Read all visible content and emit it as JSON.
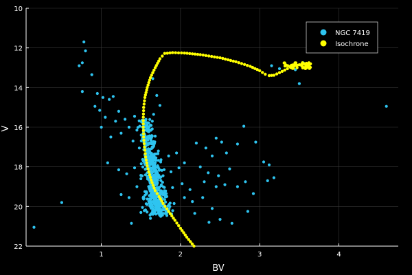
{
  "chart_data": {
    "type": "scatter",
    "xlabel": "BV",
    "ylabel": "V",
    "xlim": [
      0.05,
      4.75
    ],
    "ylim": [
      10,
      22
    ],
    "y_inverted": true,
    "x_ticks": [
      1,
      2,
      3,
      4
    ],
    "y_ticks": [
      10,
      12,
      14,
      16,
      18,
      20,
      22
    ],
    "grid": true,
    "legend_position": "top-right",
    "background": "#000000",
    "series": [
      {
        "name": "NGC 7419",
        "color": "#2ec4f0",
        "points": [
          [
            0.78,
            11.7
          ],
          [
            0.8,
            12.15
          ],
          [
            0.72,
            12.9
          ],
          [
            0.76,
            12.75
          ],
          [
            0.88,
            13.35
          ],
          [
            0.76,
            14.2
          ],
          [
            0.95,
            14.3
          ],
          [
            1.02,
            14.5
          ],
          [
            1.1,
            14.6
          ],
          [
            1.15,
            14.45
          ],
          [
            0.92,
            14.95
          ],
          [
            0.98,
            15.15
          ],
          [
            1.05,
            15.5
          ],
          [
            1.18,
            15.7
          ],
          [
            1.22,
            15.2
          ],
          [
            1.3,
            15.6
          ],
          [
            1.42,
            15.45
          ],
          [
            1.0,
            16.0
          ],
          [
            1.12,
            16.5
          ],
          [
            1.25,
            16.3
          ],
          [
            1.35,
            16.0
          ],
          [
            1.45,
            16.15
          ],
          [
            1.4,
            16.7
          ],
          [
            1.48,
            17.05
          ],
          [
            1.52,
            16.55
          ],
          [
            1.6,
            16.85
          ],
          [
            1.68,
            16.45
          ],
          [
            1.72,
            17.2
          ],
          [
            1.65,
            17.55
          ],
          [
            1.55,
            17.4
          ],
          [
            1.08,
            17.8
          ],
          [
            1.22,
            18.15
          ],
          [
            1.32,
            18.35
          ],
          [
            1.42,
            18.05
          ],
          [
            1.5,
            18.6
          ],
          [
            1.58,
            18.3
          ],
          [
            1.66,
            18.0
          ],
          [
            1.75,
            17.75
          ],
          [
            1.85,
            17.45
          ],
          [
            1.95,
            17.3
          ],
          [
            1.78,
            18.45
          ],
          [
            1.88,
            18.25
          ],
          [
            1.98,
            18.05
          ],
          [
            2.05,
            17.8
          ],
          [
            1.45,
            19.0
          ],
          [
            1.55,
            19.25
          ],
          [
            1.63,
            19.5
          ],
          [
            1.72,
            19.15
          ],
          [
            1.82,
            19.35
          ],
          [
            1.9,
            19.05
          ],
          [
            2.02,
            18.85
          ],
          [
            2.12,
            19.15
          ],
          [
            1.6,
            19.75
          ],
          [
            1.7,
            19.95
          ],
          [
            1.8,
            19.65
          ],
          [
            1.92,
            19.85
          ],
          [
            2.05,
            19.55
          ],
          [
            2.15,
            19.75
          ],
          [
            1.52,
            20.05
          ],
          [
            1.65,
            20.25
          ],
          [
            1.35,
            19.55
          ],
          [
            1.25,
            19.4
          ],
          [
            1.5,
            20.3
          ],
          [
            1.78,
            20.35
          ],
          [
            1.38,
            20.85
          ],
          [
            1.62,
            20.6
          ],
          [
            0.5,
            19.8
          ],
          [
            0.15,
            21.05
          ],
          [
            2.2,
            16.8
          ],
          [
            2.32,
            17.05
          ],
          [
            2.45,
            16.55
          ],
          [
            2.52,
            16.75
          ],
          [
            2.4,
            17.45
          ],
          [
            2.58,
            17.3
          ],
          [
            2.25,
            18.0
          ],
          [
            2.35,
            18.3
          ],
          [
            2.48,
            18.45
          ],
          [
            2.62,
            18.1
          ],
          [
            2.3,
            18.75
          ],
          [
            2.45,
            19.0
          ],
          [
            2.56,
            18.9
          ],
          [
            2.72,
            19.0
          ],
          [
            2.82,
            18.75
          ],
          [
            2.92,
            19.35
          ],
          [
            3.1,
            18.7
          ],
          [
            3.18,
            18.55
          ],
          [
            3.05,
            17.75
          ],
          [
            3.12,
            17.9
          ],
          [
            2.8,
            15.95
          ],
          [
            2.95,
            16.75
          ],
          [
            2.72,
            16.85
          ],
          [
            2.28,
            19.55
          ],
          [
            2.4,
            20.1
          ],
          [
            2.18,
            20.35
          ],
          [
            2.5,
            20.65
          ],
          [
            2.65,
            20.85
          ],
          [
            2.36,
            20.8
          ],
          [
            2.85,
            20.25
          ],
          [
            3.5,
            13.8
          ],
          [
            3.15,
            12.9
          ],
          [
            3.25,
            13.05
          ],
          [
            3.4,
            12.95
          ],
          [
            3.45,
            13.1
          ],
          [
            3.55,
            12.75
          ],
          [
            4.6,
            14.95
          ],
          [
            1.7,
            14.4
          ],
          [
            1.65,
            13.55
          ],
          [
            1.74,
            14.9
          ],
          [
            1.58,
            15.9
          ],
          [
            1.66,
            15.35
          ]
        ]
      },
      {
        "name": "Isochrone",
        "color": "#ffff00",
        "curve": [
          [
            2.17,
            22.0
          ],
          [
            2.08,
            21.55
          ],
          [
            2.0,
            21.1
          ],
          [
            1.93,
            20.7
          ],
          [
            1.85,
            20.25
          ],
          [
            1.78,
            19.85
          ],
          [
            1.73,
            19.5
          ],
          [
            1.68,
            19.2
          ],
          [
            1.64,
            18.8
          ],
          [
            1.61,
            18.4
          ],
          [
            1.58,
            17.95
          ],
          [
            1.56,
            17.5
          ],
          [
            1.545,
            17.0
          ],
          [
            1.535,
            16.5
          ],
          [
            1.53,
            16.0
          ],
          [
            1.53,
            15.5
          ],
          [
            1.535,
            15.0
          ],
          [
            1.55,
            14.5
          ],
          [
            1.58,
            14.0
          ],
          [
            1.62,
            13.5
          ],
          [
            1.68,
            13.0
          ],
          [
            1.74,
            12.55
          ],
          [
            1.8,
            12.28
          ],
          [
            1.9,
            12.24
          ],
          [
            2.05,
            12.26
          ],
          [
            2.25,
            12.34
          ],
          [
            2.5,
            12.5
          ],
          [
            2.7,
            12.7
          ],
          [
            2.88,
            12.93
          ],
          [
            3.0,
            13.15
          ],
          [
            3.07,
            13.33
          ],
          [
            3.12,
            13.4
          ],
          [
            3.18,
            13.38
          ],
          [
            3.25,
            13.25
          ],
          [
            3.35,
            13.05
          ],
          [
            3.43,
            12.93
          ],
          [
            3.5,
            12.85
          ],
          [
            3.56,
            12.8
          ],
          [
            3.62,
            12.78
          ]
        ],
        "cluster": [
          3.3,
          3.65,
          12.75,
          13.05
        ]
      }
    ]
  }
}
